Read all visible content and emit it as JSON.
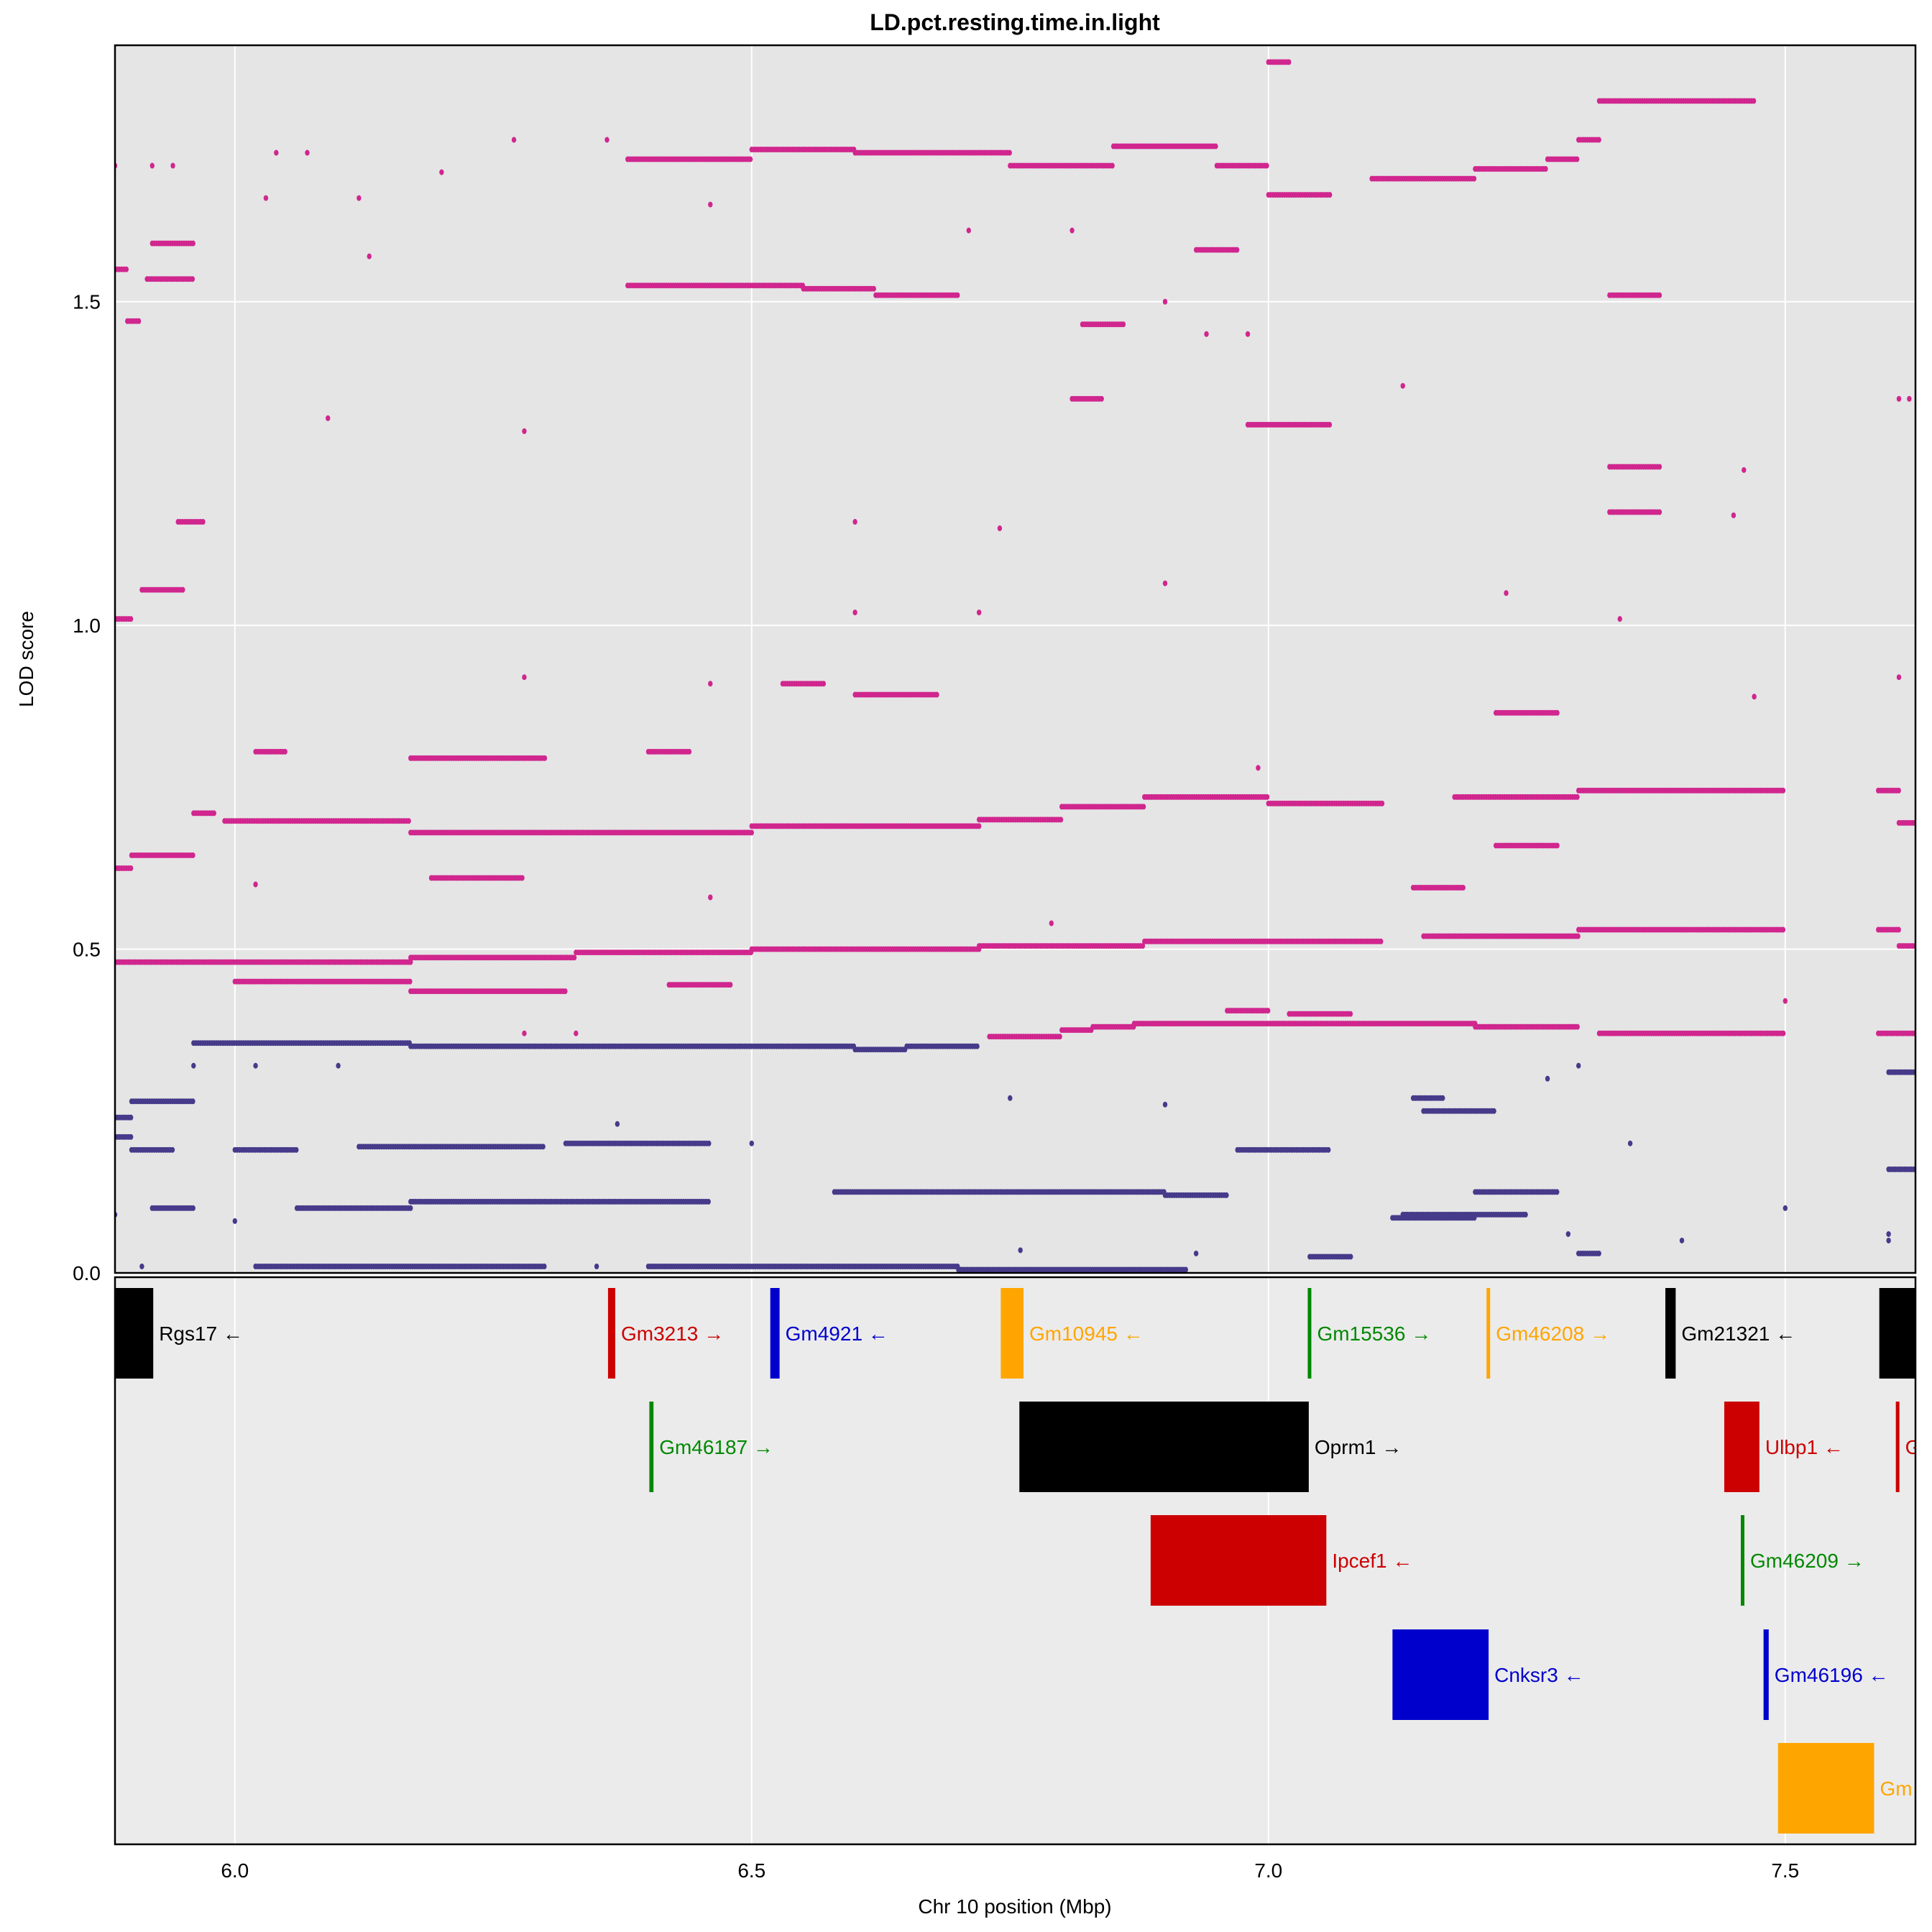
{
  "chart_data": {
    "type": "scatter",
    "title": "LD.pct.resting.time.in.light",
    "xlabel": "Chr 10 position (Mbp)",
    "ylabel": "LOD score",
    "xlim": [
      5.884,
      7.626
    ],
    "ylim": [
      0,
      1.896
    ],
    "xticks": [
      "6.0",
      "6.5",
      "7.0",
      "7.5"
    ],
    "xtick_values": [
      6.0,
      6.5,
      7.0,
      7.5
    ],
    "yticks": [
      "0.0",
      "0.5",
      "1.0",
      "1.5"
    ],
    "ytick_values": [
      0,
      0.5,
      1.0,
      1.5
    ],
    "grid": true,
    "background": "#e5e5e5",
    "colors": {
      "pink": "#d0268e",
      "purple": "#463a8a"
    },
    "runs": [
      {
        "c": "pink",
        "x": [
          5.884,
          5.896
        ],
        "y": 1.55
      },
      {
        "c": "pink",
        "x": [
          5.896,
          5.907
        ],
        "y": 1.47
      },
      {
        "c": "pink",
        "x": [
          5.92,
          5.96
        ],
        "y": 1.59
      },
      {
        "c": "pink",
        "x": [
          5.915,
          5.96
        ],
        "y": 1.535
      },
      {
        "c": "pink",
        "x": [
          5.945,
          5.97
        ],
        "y": 1.16
      },
      {
        "c": "pink",
        "x": [
          5.91,
          5.95
        ],
        "y": 1.055
      },
      {
        "c": "pink",
        "x": [
          5.884,
          5.9
        ],
        "y": 1.01
      },
      {
        "c": "pink",
        "x": [
          5.884,
          5.9
        ],
        "y": 0.625
      },
      {
        "c": "pink",
        "x": [
          5.9,
          5.96
        ],
        "y": 0.645
      },
      {
        "c": "pink",
        "x": [
          5.96,
          5.98
        ],
        "y": 0.71
      },
      {
        "c": "pink",
        "x": [
          5.99,
          6.17
        ],
        "y": 0.698
      },
      {
        "c": "pink",
        "x": [
          6.17,
          6.5
        ],
        "y": 0.68
      },
      {
        "c": "pink",
        "x": [
          6.5,
          6.72
        ],
        "y": 0.69
      },
      {
        "c": "pink",
        "x": [
          6.72,
          6.8
        ],
        "y": 0.7
      },
      {
        "c": "pink",
        "x": [
          6.8,
          6.88
        ],
        "y": 0.72
      },
      {
        "c": "pink",
        "x": [
          6.88,
          7.0
        ],
        "y": 0.735
      },
      {
        "c": "pink",
        "x": [
          7.0,
          7.11
        ],
        "y": 0.725
      },
      {
        "c": "pink",
        "x": [
          7.18,
          7.3
        ],
        "y": 0.735
      },
      {
        "c": "pink",
        "x": [
          7.3,
          7.5
        ],
        "y": 0.745
      },
      {
        "c": "pink",
        "x": [
          7.59,
          7.61
        ],
        "y": 0.745
      },
      {
        "c": "pink",
        "x": [
          7.61,
          7.626
        ],
        "y": 0.695
      },
      {
        "c": "pink",
        "x": [
          5.884,
          6.17
        ],
        "y": 0.48
      },
      {
        "c": "pink",
        "x": [
          6.17,
          6.33
        ],
        "y": 0.487
      },
      {
        "c": "pink",
        "x": [
          6.33,
          6.5
        ],
        "y": 0.495
      },
      {
        "c": "pink",
        "x": [
          6.5,
          6.72
        ],
        "y": 0.5
      },
      {
        "c": "pink",
        "x": [
          6.72,
          6.88
        ],
        "y": 0.505
      },
      {
        "c": "pink",
        "x": [
          6.88,
          7.11
        ],
        "y": 0.512
      },
      {
        "c": "pink",
        "x": [
          7.15,
          7.3
        ],
        "y": 0.52
      },
      {
        "c": "pink",
        "x": [
          7.3,
          7.5
        ],
        "y": 0.53
      },
      {
        "c": "pink",
        "x": [
          7.59,
          7.61
        ],
        "y": 0.53
      },
      {
        "c": "pink",
        "x": [
          7.61,
          7.626
        ],
        "y": 0.505
      },
      {
        "c": "pink",
        "x": [
          6.0,
          6.17
        ],
        "y": 0.45
      },
      {
        "c": "pink",
        "x": [
          6.17,
          6.32
        ],
        "y": 0.435
      },
      {
        "c": "pink",
        "x": [
          6.42,
          6.48
        ],
        "y": 0.445
      },
      {
        "c": "pink",
        "x": [
          6.73,
          6.8
        ],
        "y": 0.365
      },
      {
        "c": "pink",
        "x": [
          6.8,
          6.83
        ],
        "y": 0.375
      },
      {
        "c": "pink",
        "x": [
          6.83,
          6.87
        ],
        "y": 0.38
      },
      {
        "c": "pink",
        "x": [
          6.87,
          7.2
        ],
        "y": 0.385
      },
      {
        "c": "pink",
        "x": [
          7.2,
          7.3
        ],
        "y": 0.38
      },
      {
        "c": "pink",
        "x": [
          7.32,
          7.5
        ],
        "y": 0.37
      },
      {
        "c": "pink",
        "x": [
          7.59,
          7.626
        ],
        "y": 0.37
      },
      {
        "c": "pink",
        "x": [
          6.38,
          6.5
        ],
        "y": 1.72
      },
      {
        "c": "pink",
        "x": [
          6.5,
          6.6
        ],
        "y": 1.735
      },
      {
        "c": "pink",
        "x": [
          6.6,
          6.75
        ],
        "y": 1.73
      },
      {
        "c": "pink",
        "x": [
          6.75,
          6.85
        ],
        "y": 1.71
      },
      {
        "c": "pink",
        "x": [
          6.85,
          6.95
        ],
        "y": 1.74
      },
      {
        "c": "pink",
        "x": [
          6.95,
          7.0
        ],
        "y": 1.71
      },
      {
        "c": "pink",
        "x": [
          7.0,
          7.06
        ],
        "y": 1.665
      },
      {
        "c": "pink",
        "x": [
          7.1,
          7.2
        ],
        "y": 1.69
      },
      {
        "c": "pink",
        "x": [
          7.2,
          7.27
        ],
        "y": 1.705
      },
      {
        "c": "pink",
        "x": [
          7.27,
          7.3
        ],
        "y": 1.72
      },
      {
        "c": "pink",
        "x": [
          7.3,
          7.32
        ],
        "y": 1.75
      },
      {
        "c": "pink",
        "x": [
          7.32,
          7.47
        ],
        "y": 1.81
      },
      {
        "c": "pink",
        "x": [
          7.0,
          7.02
        ],
        "y": 1.87
      },
      {
        "c": "pink",
        "x": [
          6.38,
          6.55
        ],
        "y": 1.525
      },
      {
        "c": "pink",
        "x": [
          6.55,
          6.62
        ],
        "y": 1.52
      },
      {
        "c": "pink",
        "x": [
          6.62,
          6.7
        ],
        "y": 1.51
      },
      {
        "c": "pink",
        "x": [
          7.33,
          7.38
        ],
        "y": 1.51
      },
      {
        "c": "pink",
        "x": [
          6.17,
          6.3
        ],
        "y": 0.795
      },
      {
        "c": "pink",
        "x": [
          6.4,
          6.44
        ],
        "y": 0.805
      },
      {
        "c": "pink",
        "x": [
          6.02,
          6.05
        ],
        "y": 0.805
      },
      {
        "c": "pink",
        "x": [
          6.53,
          6.57
        ],
        "y": 0.91
      },
      {
        "c": "pink",
        "x": [
          6.6,
          6.68
        ],
        "y": 0.893
      },
      {
        "c": "pink",
        "x": [
          6.19,
          6.28
        ],
        "y": 0.61
      },
      {
        "c": "pink",
        "x": [
          6.98,
          7.06
        ],
        "y": 1.31
      },
      {
        "c": "pink",
        "x": [
          7.33,
          7.38
        ],
        "y": 1.245
      },
      {
        "c": "pink",
        "x": [
          7.33,
          7.38
        ],
        "y": 1.175
      },
      {
        "c": "pink",
        "x": [
          7.22,
          7.28
        ],
        "y": 0.865
      },
      {
        "c": "pink",
        "x": [
          7.22,
          7.28
        ],
        "y": 0.66
      },
      {
        "c": "pink",
        "x": [
          6.93,
          6.97
        ],
        "y": 1.58
      },
      {
        "c": "pink",
        "x": [
          6.81,
          6.84
        ],
        "y": 1.35
      },
      {
        "c": "pink",
        "x": [
          6.82,
          6.86
        ],
        "y": 1.465
      },
      {
        "c": "pink",
        "x": [
          7.14,
          7.19
        ],
        "y": 0.595
      },
      {
        "c": "pink",
        "x": [
          6.96,
          7.0
        ],
        "y": 0.405
      },
      {
        "c": "pink",
        "x": [
          7.02,
          7.08
        ],
        "y": 0.4
      },
      {
        "c": "purple",
        "x": [
          5.884,
          5.9
        ],
        "y": 0.24
      },
      {
        "c": "purple",
        "x": [
          5.884,
          5.9
        ],
        "y": 0.21
      },
      {
        "c": "purple",
        "x": [
          5.9,
          5.96
        ],
        "y": 0.265
      },
      {
        "c": "purple",
        "x": [
          5.96,
          6.17
        ],
        "y": 0.355
      },
      {
        "c": "purple",
        "x": [
          6.17,
          6.48
        ],
        "y": 0.35
      },
      {
        "c": "purple",
        "x": [
          6.48,
          6.6
        ],
        "y": 0.35
      },
      {
        "c": "purple",
        "x": [
          6.6,
          6.65
        ],
        "y": 0.345
      },
      {
        "c": "purple",
        "x": [
          6.65,
          6.72
        ],
        "y": 0.35
      },
      {
        "c": "purple",
        "x": [
          5.9,
          5.94
        ],
        "y": 0.19
      },
      {
        "c": "purple",
        "x": [
          6.0,
          6.06
        ],
        "y": 0.19
      },
      {
        "c": "purple",
        "x": [
          6.12,
          6.3
        ],
        "y": 0.195
      },
      {
        "c": "purple",
        "x": [
          6.32,
          6.46
        ],
        "y": 0.2
      },
      {
        "c": "purple",
        "x": [
          5.92,
          5.96
        ],
        "y": 0.1
      },
      {
        "c": "purple",
        "x": [
          6.06,
          6.17
        ],
        "y": 0.1
      },
      {
        "c": "purple",
        "x": [
          6.17,
          6.46
        ],
        "y": 0.11
      },
      {
        "c": "purple",
        "x": [
          6.58,
          6.9
        ],
        "y": 0.125
      },
      {
        "c": "purple",
        "x": [
          6.9,
          6.96
        ],
        "y": 0.12
      },
      {
        "c": "purple",
        "x": [
          7.12,
          7.2
        ],
        "y": 0.085
      },
      {
        "c": "purple",
        "x": [
          7.2,
          7.28
        ],
        "y": 0.125
      },
      {
        "c": "purple",
        "x": [
          7.13,
          7.25
        ],
        "y": 0.09
      },
      {
        "c": "purple",
        "x": [
          6.02,
          6.3
        ],
        "y": 0.01
      },
      {
        "c": "purple",
        "x": [
          6.4,
          6.7
        ],
        "y": 0.01
      },
      {
        "c": "purple",
        "x": [
          6.7,
          6.92
        ],
        "y": 0.005
      },
      {
        "c": "purple",
        "x": [
          6.97,
          7.06
        ],
        "y": 0.19
      },
      {
        "c": "purple",
        "x": [
          7.14,
          7.17
        ],
        "y": 0.27
      },
      {
        "c": "purple",
        "x": [
          7.15,
          7.22
        ],
        "y": 0.25
      },
      {
        "c": "purple",
        "x": [
          7.6,
          7.626
        ],
        "y": 0.31
      },
      {
        "c": "purple",
        "x": [
          7.6,
          7.626
        ],
        "y": 0.16
      },
      {
        "c": "purple",
        "x": [
          7.04,
          7.08
        ],
        "y": 0.025
      },
      {
        "c": "purple",
        "x": [
          7.3,
          7.32
        ],
        "y": 0.03
      }
    ],
    "isolated": [
      {
        "c": "pink",
        "x": 5.884,
        "y": 1.71
      },
      {
        "c": "pink",
        "x": 5.92,
        "y": 1.71
      },
      {
        "c": "pink",
        "x": 5.94,
        "y": 1.71
      },
      {
        "c": "pink",
        "x": 6.03,
        "y": 1.66
      },
      {
        "c": "pink",
        "x": 6.04,
        "y": 1.73
      },
      {
        "c": "pink",
        "x": 6.07,
        "y": 1.73
      },
      {
        "c": "pink",
        "x": 6.12,
        "y": 1.66
      },
      {
        "c": "pink",
        "x": 6.13,
        "y": 1.57
      },
      {
        "c": "pink",
        "x": 6.2,
        "y": 1.7
      },
      {
        "c": "pink",
        "x": 6.27,
        "y": 1.75
      },
      {
        "c": "pink",
        "x": 6.36,
        "y": 1.75
      },
      {
        "c": "pink",
        "x": 6.46,
        "y": 1.65
      },
      {
        "c": "pink",
        "x": 6.09,
        "y": 1.32
      },
      {
        "c": "pink",
        "x": 6.28,
        "y": 1.3
      },
      {
        "c": "pink",
        "x": 6.28,
        "y": 0.92
      },
      {
        "c": "pink",
        "x": 6.46,
        "y": 0.91
      },
      {
        "c": "pink",
        "x": 6.6,
        "y": 1.02
      },
      {
        "c": "pink",
        "x": 6.72,
        "y": 1.02
      },
      {
        "c": "pink",
        "x": 6.9,
        "y": 1.065
      },
      {
        "c": "pink",
        "x": 6.71,
        "y": 1.61
      },
      {
        "c": "pink",
        "x": 6.81,
        "y": 1.61
      },
      {
        "c": "pink",
        "x": 6.6,
        "y": 1.16
      },
      {
        "c": "pink",
        "x": 6.74,
        "y": 1.15
      },
      {
        "c": "pink",
        "x": 7.23,
        "y": 1.05
      },
      {
        "c": "pink",
        "x": 7.34,
        "y": 1.01
      },
      {
        "c": "pink",
        "x": 7.47,
        "y": 0.89
      },
      {
        "c": "pink",
        "x": 7.61,
        "y": 0.92
      },
      {
        "c": "pink",
        "x": 7.61,
        "y": 1.35
      },
      {
        "c": "pink",
        "x": 7.62,
        "y": 1.35
      },
      {
        "c": "pink",
        "x": 7.46,
        "y": 1.24
      },
      {
        "c": "pink",
        "x": 7.45,
        "y": 1.17
      },
      {
        "c": "pink",
        "x": 7.13,
        "y": 1.37
      },
      {
        "c": "pink",
        "x": 6.94,
        "y": 1.45
      },
      {
        "c": "pink",
        "x": 6.98,
        "y": 1.45
      },
      {
        "c": "pink",
        "x": 6.9,
        "y": 1.5
      },
      {
        "c": "pink",
        "x": 6.46,
        "y": 0.58
      },
      {
        "c": "pink",
        "x": 6.02,
        "y": 0.6
      },
      {
        "c": "pink",
        "x": 6.99,
        "y": 0.78
      },
      {
        "c": "pink",
        "x": 7.5,
        "y": 0.42
      },
      {
        "c": "pink",
        "x": 6.28,
        "y": 0.37
      },
      {
        "c": "pink",
        "x": 6.33,
        "y": 0.37
      },
      {
        "c": "pink",
        "x": 6.79,
        "y": 0.54
      },
      {
        "c": "purple",
        "x": 5.96,
        "y": 0.32
      },
      {
        "c": "purple",
        "x": 6.02,
        "y": 0.32
      },
      {
        "c": "purple",
        "x": 6.1,
        "y": 0.32
      },
      {
        "c": "purple",
        "x": 6.37,
        "y": 0.23
      },
      {
        "c": "purple",
        "x": 6.75,
        "y": 0.27
      },
      {
        "c": "purple",
        "x": 6.9,
        "y": 0.26
      },
      {
        "c": "purple",
        "x": 7.27,
        "y": 0.3
      },
      {
        "c": "purple",
        "x": 7.3,
        "y": 0.32
      },
      {
        "c": "purple",
        "x": 7.35,
        "y": 0.2
      },
      {
        "c": "purple",
        "x": 7.6,
        "y": 0.05
      },
      {
        "c": "purple",
        "x": 7.6,
        "y": 0.06
      },
      {
        "c": "purple",
        "x": 7.5,
        "y": 0.1
      },
      {
        "c": "purple",
        "x": 6.76,
        "y": 0.035
      },
      {
        "c": "purple",
        "x": 6.93,
        "y": 0.03
      },
      {
        "c": "purple",
        "x": 7.29,
        "y": 0.06
      },
      {
        "c": "purple",
        "x": 6.0,
        "y": 0.08
      },
      {
        "c": "purple",
        "x": 6.5,
        "y": 0.2
      },
      {
        "c": "purple",
        "x": 7.4,
        "y": 0.05
      },
      {
        "c": "purple",
        "x": 5.884,
        "y": 0.09
      },
      {
        "c": "purple",
        "x": 5.91,
        "y": 0.01
      },
      {
        "c": "purple",
        "x": 6.35,
        "y": 0.01
      }
    ]
  },
  "genes": {
    "background": "#ebebeb",
    "items": [
      {
        "label": "Rgs17 ←",
        "start": 5.884,
        "end": 5.921,
        "row": 1,
        "color": "#000000"
      },
      {
        "label": "Gm3213 →",
        "start": 6.361,
        "end": 6.368,
        "row": 1,
        "color": "#cc0000"
      },
      {
        "label": "Gm4921 ←",
        "start": 6.518,
        "end": 6.527,
        "row": 1,
        "color": "#0000cc"
      },
      {
        "label": "Gm10945 ←",
        "start": 6.741,
        "end": 6.763,
        "row": 1,
        "color": "#ffa500"
      },
      {
        "label": "Gm15536 →",
        "start": 7.038,
        "end": 7.04,
        "row": 1,
        "color": "#008800"
      },
      {
        "label": "Gm46208 →",
        "start": 7.211,
        "end": 7.214,
        "row": 1,
        "color": "#ffa500"
      },
      {
        "label": "Gm21321 ←",
        "start": 7.384,
        "end": 7.394,
        "row": 1,
        "color": "#000000"
      },
      {
        "label": "",
        "start": 7.591,
        "end": 7.626,
        "row": 1,
        "color": "#000000"
      },
      {
        "label": "Gm46187 →",
        "start": 6.401,
        "end": 6.405,
        "row": 2,
        "color": "#008800"
      },
      {
        "label": "Oprm1 →",
        "start": 6.759,
        "end": 7.039,
        "row": 2,
        "color": "#000000"
      },
      {
        "label": "Ulbp1 ←",
        "start": 7.441,
        "end": 7.475,
        "row": 2,
        "color": "#cc0000"
      },
      {
        "label": "G",
        "start": 7.607,
        "end": 7.609,
        "row": 2,
        "color": "#cc0000"
      },
      {
        "label": "Ipcef1 ←",
        "start": 6.886,
        "end": 7.056,
        "row": 3,
        "color": "#cc0000"
      },
      {
        "label": "Gm46209 →",
        "start": 7.457,
        "end": 7.459,
        "row": 3,
        "color": "#008800"
      },
      {
        "label": "Cnksr3 ←",
        "start": 7.12,
        "end": 7.213,
        "row": 4,
        "color": "#0000cc"
      },
      {
        "label": "Gm46196 ←",
        "start": 7.479,
        "end": 7.484,
        "row": 4,
        "color": "#0000cc"
      },
      {
        "label": "Gm",
        "start": 7.493,
        "end": 7.586,
        "row": 5,
        "color": "#ffa500"
      }
    ]
  }
}
